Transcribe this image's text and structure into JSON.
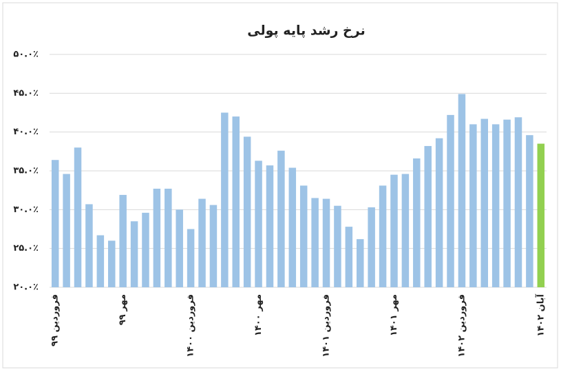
{
  "chart_data": {
    "type": "bar",
    "title": "نرخ رشد پایه پولی",
    "categories": [
      "فروردین ۹۹",
      null,
      null,
      null,
      null,
      null,
      "مهر ۹۹",
      null,
      null,
      null,
      null,
      null,
      "فروردین ۱۴۰۰",
      null,
      null,
      null,
      null,
      null,
      "مهر ۱۴۰۰",
      null,
      null,
      null,
      null,
      null,
      "فروردین ۱۴۰۱",
      null,
      null,
      null,
      null,
      null,
      "مهر ۱۴۰۱",
      null,
      null,
      null,
      null,
      null,
      "فروردین ۱۴۰۲",
      null,
      null,
      null,
      null,
      null,
      null,
      "آبان ۱۴۰۲"
    ],
    "values": [
      36.4,
      34.6,
      38.0,
      30.7,
      26.7,
      26.0,
      31.9,
      28.5,
      29.6,
      32.7,
      32.7,
      30.0,
      27.5,
      31.4,
      30.6,
      42.5,
      42.0,
      39.4,
      36.3,
      35.7,
      37.6,
      35.4,
      33.1,
      31.5,
      31.4,
      30.5,
      27.8,
      26.2,
      30.3,
      33.1,
      34.5,
      34.6,
      36.6,
      38.2,
      39.2,
      42.2,
      44.9,
      41.0,
      41.7,
      41.0,
      41.6,
      41.9,
      39.6,
      38.5
    ],
    "colors": [
      "#9dc3e6",
      "#9dc3e6",
      "#9dc3e6",
      "#9dc3e6",
      "#9dc3e6",
      "#9dc3e6",
      "#9dc3e6",
      "#9dc3e6",
      "#9dc3e6",
      "#9dc3e6",
      "#9dc3e6",
      "#9dc3e6",
      "#9dc3e6",
      "#9dc3e6",
      "#9dc3e6",
      "#9dc3e6",
      "#9dc3e6",
      "#9dc3e6",
      "#9dc3e6",
      "#9dc3e6",
      "#9dc3e6",
      "#9dc3e6",
      "#9dc3e6",
      "#9dc3e6",
      "#9dc3e6",
      "#9dc3e6",
      "#9dc3e6",
      "#9dc3e6",
      "#9dc3e6",
      "#9dc3e6",
      "#9dc3e6",
      "#9dc3e6",
      "#9dc3e6",
      "#9dc3e6",
      "#9dc3e6",
      "#9dc3e6",
      "#9dc3e6",
      "#9dc3e6",
      "#9dc3e6",
      "#9dc3e6",
      "#9dc3e6",
      "#9dc3e6",
      "#9dc3e6",
      "#92d050"
    ],
    "ylim": [
      20,
      50
    ],
    "yticks": [
      {
        "value": 20,
        "label": "۲۰.۰٪"
      },
      {
        "value": 25,
        "label": "۲۵.۰٪"
      },
      {
        "value": 30,
        "label": "۳۰.۰٪"
      },
      {
        "value": 35,
        "label": "۳۵.۰٪"
      },
      {
        "value": 40,
        "label": "۴۰.۰٪"
      },
      {
        "value": 45,
        "label": "۴۵.۰٪"
      },
      {
        "value": 50,
        "label": "۵۰.۰٪"
      }
    ],
    "grid": true
  }
}
